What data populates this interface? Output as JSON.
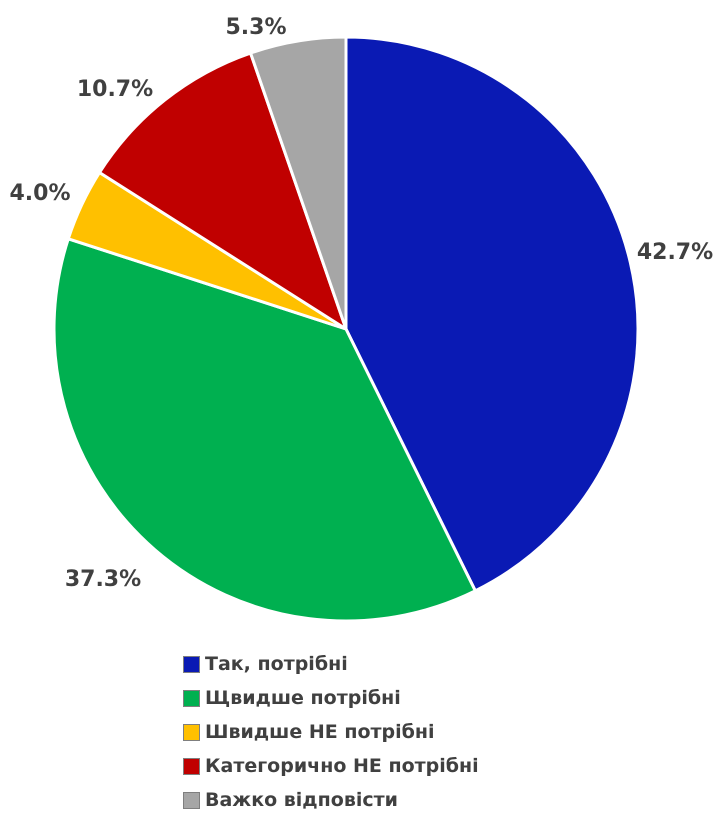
{
  "chart_data": {
    "type": "pie",
    "title": "",
    "categories": [
      "Так, потрібні",
      "Щвидше потрібні",
      "Швидше НЕ потрібні",
      "Категорично НЕ потрібні",
      "Важко відповісти"
    ],
    "values": [
      42.7,
      37.3,
      4.0,
      10.7,
      5.3
    ],
    "value_labels": [
      "42.7%",
      "37.3%",
      "4.0%",
      "10.7%",
      "5.3%"
    ],
    "colors": [
      "#0a1ab4",
      "#00b050",
      "#ffc000",
      "#c00000",
      "#a6a6a6"
    ],
    "start_angle": "12 o'clock",
    "direction": "clockwise",
    "legend": {
      "position": "bottom",
      "items": [
        {
          "label": "Так, потрібні",
          "color": "#0a1ab4"
        },
        {
          "label": "Щвидше потрібні",
          "color": "#00b050"
        },
        {
          "label": "Швидше НЕ потрібні",
          "color": "#ffc000"
        },
        {
          "label": "Категорично НЕ потрібні",
          "color": "#c00000"
        },
        {
          "label": "Важко відповісти",
          "color": "#a6a6a6"
        }
      ]
    }
  }
}
